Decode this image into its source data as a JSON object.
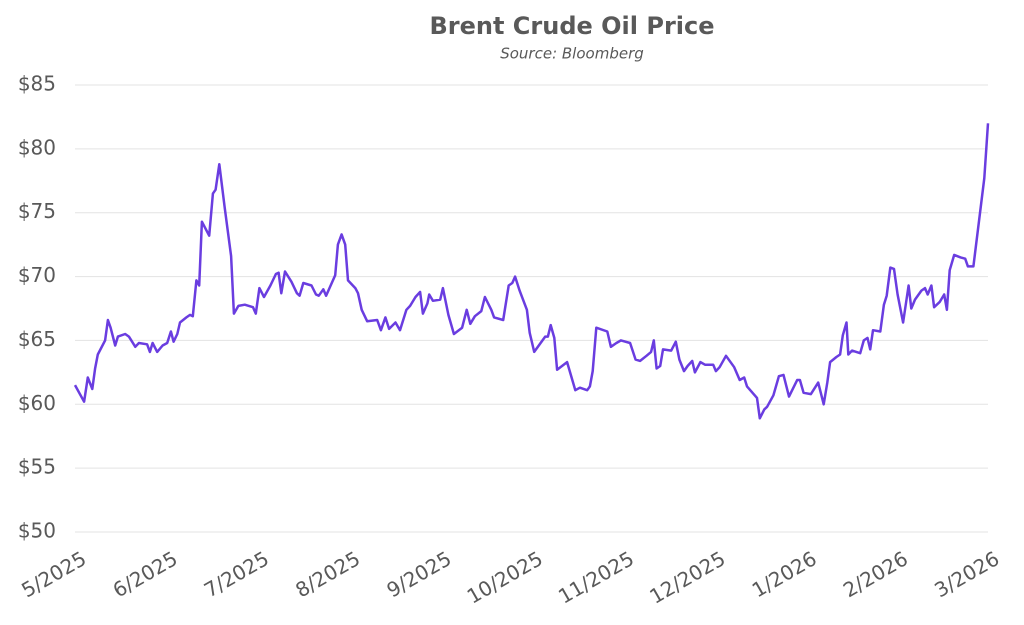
{
  "chart_data": {
    "type": "line",
    "title": "Brent Crude Oil Price",
    "subtitle": "Source: Bloomberg",
    "xlim": [
      0,
      10
    ],
    "xticks": [
      {
        "value": 0,
        "label": "5/2025"
      },
      {
        "value": 1,
        "label": "6/2025"
      },
      {
        "value": 2,
        "label": "7/2025"
      },
      {
        "value": 3,
        "label": "8/2025"
      },
      {
        "value": 4,
        "label": "9/2025"
      },
      {
        "value": 5,
        "label": "10/2025"
      },
      {
        "value": 6,
        "label": "11/2025"
      },
      {
        "value": 7,
        "label": "12/2025"
      },
      {
        "value": 8,
        "label": "1/2026"
      },
      {
        "value": 9,
        "label": "2/2026"
      },
      {
        "value": 10,
        "label": "3/2026"
      }
    ],
    "ylim": [
      50,
      85
    ],
    "yticks": [
      {
        "value": 50,
        "label": "$50"
      },
      {
        "value": 55,
        "label": "$55"
      },
      {
        "value": 60,
        "label": "$60"
      },
      {
        "value": 65,
        "label": "$65"
      },
      {
        "value": 70,
        "label": "$70"
      },
      {
        "value": 75,
        "label": "$75"
      },
      {
        "value": 80,
        "label": "$80"
      },
      {
        "value": 85,
        "label": "$85"
      }
    ],
    "grid": true,
    "series": [
      {
        "color": "#6a3de0",
        "x": [
          0,
          0.1,
          0.14,
          0.19,
          0.22,
          0.25,
          0.33,
          0.36,
          0.39,
          0.44,
          0.47,
          0.55,
          0.59,
          0.66,
          0.7,
          0.79,
          0.82,
          0.85,
          0.9,
          0.96,
          1.01,
          1.05,
          1.08,
          1.12,
          1.15,
          1.22,
          1.26,
          1.29,
          1.33,
          1.36,
          1.39,
          1.47,
          1.51,
          1.54,
          1.58,
          1.64,
          1.71,
          1.74,
          1.79,
          1.86,
          1.95,
          1.98,
          2.02,
          2.07,
          2.14,
          2.2,
          2.23,
          2.26,
          2.3,
          2.37,
          2.43,
          2.46,
          2.5,
          2.59,
          2.64,
          2.67,
          2.72,
          2.75,
          2.85,
          2.88,
          2.92,
          2.96,
          2.99,
          3.07,
          3.1,
          3.14,
          3.2,
          3.31,
          3.35,
          3.4,
          3.44,
          3.51,
          3.56,
          3.63,
          3.67,
          3.73,
          3.78,
          3.81,
          3.86,
          3.88,
          3.92,
          4,
          4.03,
          4.09,
          4.15,
          4.24,
          4.29,
          4.33,
          4.38,
          4.45,
          4.49,
          4.56,
          4.59,
          4.69,
          4.75,
          4.79,
          4.82,
          4.87,
          4.95,
          4.98,
          5.03,
          5.15,
          5.18,
          5.21,
          5.25,
          5.28,
          5.39,
          5.48,
          5.53,
          5.61,
          5.64,
          5.67,
          5.71,
          5.83,
          5.87,
          5.93,
          5.98,
          6.08,
          6.14,
          6.19,
          6.26,
          6.31,
          6.34,
          6.37,
          6.41,
          6.44,
          6.53,
          6.58,
          6.62,
          6.67,
          6.71,
          6.76,
          6.79,
          6.85,
          6.9,
          6.99,
          7.02,
          7.06,
          7.13,
          7.22,
          7.28,
          7.33,
          7.36,
          7.47,
          7.5,
          7.55,
          7.58,
          7.65,
          7.71,
          7.76,
          7.82,
          7.91,
          7.94,
          7.98,
          8.06,
          8.14,
          8.2,
          8.24,
          8.27,
          8.34,
          8.38,
          8.41,
          8.45,
          8.47,
          8.51,
          8.6,
          8.64,
          8.68,
          8.71,
          8.74,
          8.82,
          8.86,
          8.89,
          8.93,
          8.97,
          9.01,
          9.07,
          9.13,
          9.16,
          9.2,
          9.27,
          9.31,
          9.34,
          9.38,
          9.41,
          9.47,
          9.52,
          9.55,
          9.58,
          9.63,
          9.7,
          9.75,
          9.78,
          9.84,
          9.96,
          10
        ],
        "values": [
          61.5,
          60.2,
          62.1,
          61.2,
          62.8,
          63.9,
          65,
          66.6,
          66,
          64.6,
          65.3,
          65.5,
          65.3,
          64.5,
          64.8,
          64.7,
          64.1,
          64.8,
          64.1,
          64.6,
          64.8,
          65.7,
          64.9,
          65.5,
          66.4,
          66.8,
          67,
          66.9,
          69.7,
          69.3,
          74.3,
          73.2,
          76.5,
          76.8,
          78.8,
          75.4,
          71.6,
          67.1,
          67.7,
          67.8,
          67.6,
          67.1,
          69.1,
          68.4,
          69.3,
          70.2,
          70.3,
          68.7,
          70.4,
          69.6,
          68.7,
          68.5,
          69.5,
          69.3,
          68.6,
          68.5,
          69,
          68.5,
          70.1,
          72.5,
          73.3,
          72.5,
          69.7,
          69.1,
          68.7,
          67.4,
          66.5,
          66.6,
          65.8,
          66.8,
          65.9,
          66.4,
          65.8,
          67.4,
          67.7,
          68.4,
          68.8,
          67.1,
          67.9,
          68.6,
          68.1,
          68.2,
          69.1,
          67,
          65.5,
          66,
          67.4,
          66.3,
          66.9,
          67.3,
          68.4,
          67.4,
          66.8,
          66.6,
          69.3,
          69.5,
          70,
          68.9,
          67.4,
          65.6,
          64.1,
          65.3,
          65.3,
          66.2,
          65.2,
          62.7,
          63.3,
          61.1,
          61.3,
          61.1,
          61.4,
          62.6,
          66,
          65.7,
          64.5,
          64.8,
          65,
          64.8,
          63.5,
          63.4,
          63.8,
          64.1,
          65,
          62.8,
          63,
          64.3,
          64.2,
          64.9,
          63.5,
          62.6,
          63,
          63.4,
          62.5,
          63.3,
          63.1,
          63.1,
          62.6,
          62.9,
          63.8,
          62.9,
          61.9,
          62.1,
          61.4,
          60.5,
          58.9,
          59.6,
          59.8,
          60.7,
          62.2,
          62.3,
          60.6,
          61.9,
          61.9,
          60.9,
          60.8,
          61.7,
          60,
          61.7,
          63.3,
          63.7,
          63.9,
          65.4,
          66.4,
          63.9,
          64.2,
          64,
          65,
          65.2,
          64.3,
          65.8,
          65.7,
          67.8,
          68.5,
          70.7,
          70.6,
          68.6,
          66.4,
          69.3,
          67.5,
          68.2,
          68.9,
          69.1,
          68.6,
          69.3,
          67.6,
          68,
          68.6,
          67.4,
          70.5,
          71.7,
          71.5,
          71.4,
          70.8,
          70.8,
          77.7,
          82
        ]
      }
    ]
  }
}
